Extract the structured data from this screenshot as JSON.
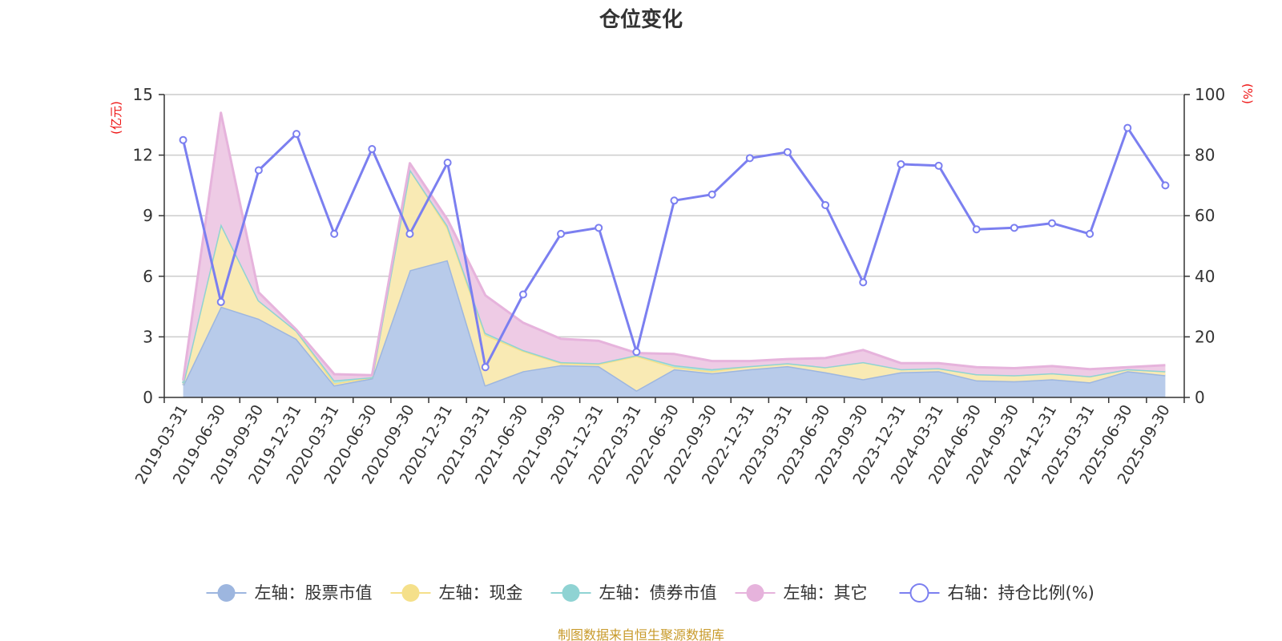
{
  "chart_data": {
    "type": "area",
    "title": "仓位变化",
    "left_axis_unit": "(亿元)",
    "right_axis_unit": "(%)",
    "ylim_left": [
      0,
      15
    ],
    "yticks_left": [
      "0",
      "3",
      "6",
      "9",
      "12",
      "15"
    ],
    "ylim_right": [
      0,
      100
    ],
    "yticks_right": [
      "0",
      "20",
      "40",
      "60",
      "80",
      "100"
    ],
    "categories": [
      "2019-03-31",
      "2019-06-30",
      "2019-09-30",
      "2019-12-31",
      "2020-03-31",
      "2020-06-30",
      "2020-09-30",
      "2020-12-31",
      "2021-03-31",
      "2021-06-30",
      "2021-09-30",
      "2021-12-31",
      "2022-03-31",
      "2022-06-30",
      "2022-09-30",
      "2022-12-31",
      "2023-03-31",
      "2023-06-30",
      "2023-09-30",
      "2023-12-31",
      "2024-03-31",
      "2024-06-30",
      "2024-09-30",
      "2024-12-31",
      "2025-03-31",
      "2025-06-30",
      "2025-09-30"
    ],
    "series": [
      {
        "name": "左轴：股票市值",
        "axis": "left",
        "kind": "stacked-area",
        "color": "#9db6df",
        "fill": "#b8cbea",
        "values": [
          0.6,
          4.5,
          3.9,
          2.9,
          0.6,
          0.95,
          6.3,
          6.8,
          0.6,
          1.3,
          1.6,
          1.55,
          0.35,
          1.4,
          1.2,
          1.4,
          1.55,
          1.25,
          0.9,
          1.25,
          1.3,
          0.85,
          0.8,
          0.9,
          0.75,
          1.3,
          1.1
        ]
      },
      {
        "name": "左轴：现金",
        "axis": "left",
        "kind": "stacked-area",
        "color": "#f5e08a",
        "fill": "#f9eab4",
        "values": [
          0.1,
          4.1,
          0.9,
          0.4,
          0.1,
          0.05,
          5.0,
          1.6,
          2.5,
          1.0,
          0.1,
          0.1,
          1.7,
          0.1,
          0.1,
          0.15,
          0.15,
          0.25,
          0.85,
          0.15,
          0.15,
          0.3,
          0.3,
          0.3,
          0.3,
          0.1,
          0.2
        ]
      },
      {
        "name": "左轴：债券市值",
        "axis": "left",
        "kind": "stacked-area",
        "color": "#8fd3d3",
        "fill": "#b3e2e2",
        "values": [
          0,
          0,
          0,
          0,
          0.15,
          0,
          0,
          0.1,
          0.1,
          0.05,
          0.05,
          0.05,
          0.05,
          0.1,
          0.1,
          0,
          0,
          0,
          0,
          0,
          0,
          0,
          0,
          0,
          0,
          0,
          0
        ]
      },
      {
        "name": "左轴：其它",
        "axis": "left",
        "kind": "stacked-area",
        "color": "#e6b3dc",
        "fill": "#eecbe5",
        "values": [
          0.15,
          5.5,
          0.4,
          0.05,
          0.3,
          0.1,
          0.3,
          0.3,
          1.85,
          1.35,
          1.15,
          1.1,
          0.1,
          0.55,
          0.4,
          0.25,
          0.2,
          0.45,
          0.6,
          0.3,
          0.25,
          0.35,
          0.35,
          0.35,
          0.35,
          0.1,
          0.3
        ]
      },
      {
        "name": "右轴：持仓比例(%)",
        "axis": "right",
        "kind": "line",
        "color": "#7b7ff0",
        "values": [
          85,
          31.5,
          75,
          87,
          54,
          82,
          54,
          77.5,
          10,
          34,
          54,
          56,
          15,
          65,
          67,
          79,
          81,
          63.5,
          38,
          77,
          76.5,
          55.5,
          56,
          57.5,
          54,
          89,
          70
        ]
      }
    ],
    "legend": [
      "左轴：股票市值",
      "左轴：现金",
      "左轴：债券市值",
      "左轴：其它",
      "右轴：持仓比例(%)"
    ],
    "legend_position": "bottom",
    "source_note": "制图数据来自恒生聚源数据库"
  }
}
